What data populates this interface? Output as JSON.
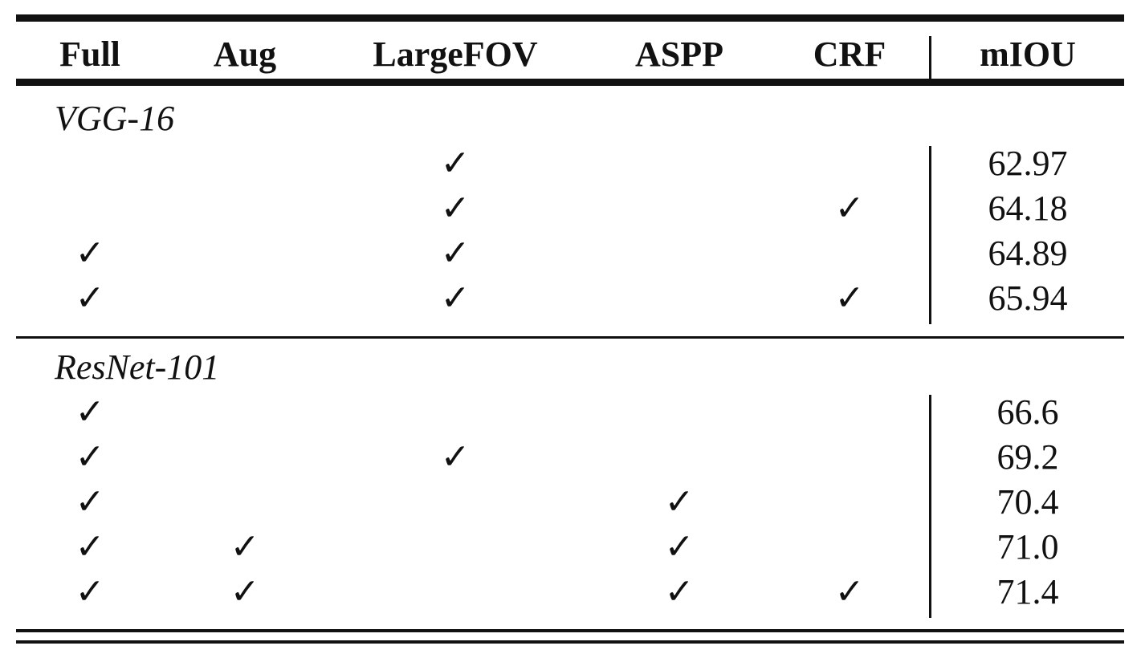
{
  "table": {
    "header": [
      "Full",
      "Aug",
      "LargeFOV",
      "ASPP",
      "CRF",
      "mIOU"
    ],
    "sections": [
      {
        "title": "VGG-16",
        "rows": [
          [
            null,
            null,
            "✓",
            null,
            null,
            "62.97"
          ],
          [
            null,
            null,
            "✓",
            null,
            "✓",
            "64.18"
          ],
          [
            "✓",
            null,
            "✓",
            null,
            null,
            "64.89"
          ],
          [
            "✓",
            null,
            "✓",
            null,
            "✓",
            "65.94"
          ]
        ]
      },
      {
        "title": "ResNet-101",
        "rows": [
          [
            "✓",
            null,
            null,
            null,
            null,
            "66.6"
          ],
          [
            "✓",
            null,
            "✓",
            null,
            null,
            "69.2"
          ],
          [
            "✓",
            null,
            null,
            "✓",
            null,
            "70.4"
          ],
          [
            "✓",
            "✓",
            null,
            "✓",
            null,
            "71.0"
          ],
          [
            "✓",
            "✓",
            null,
            "✓",
            "✓",
            "71.4"
          ]
        ]
      }
    ]
  }
}
